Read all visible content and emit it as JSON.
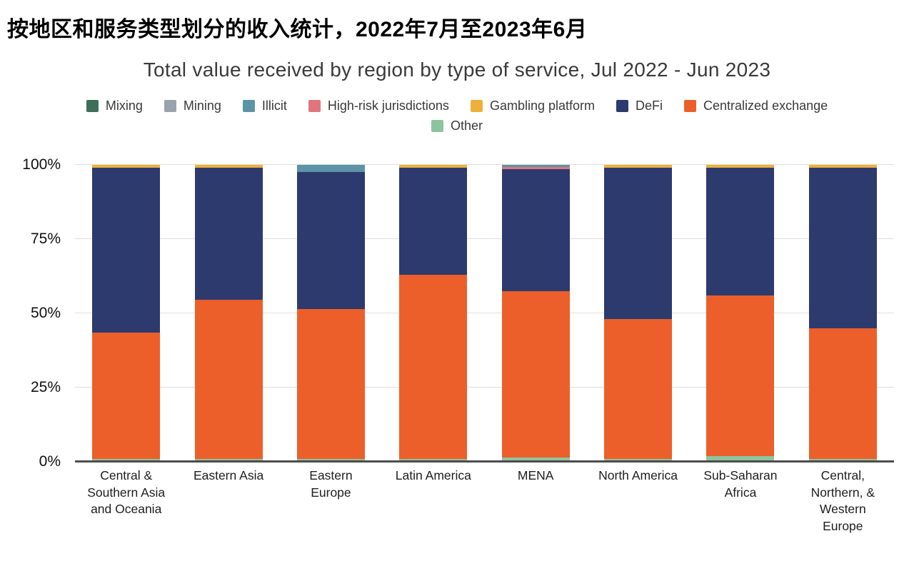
{
  "page": {
    "title_cn": "按地区和服务类型划分的收入统计，2022年7月至2023年6月"
  },
  "chart_data": {
    "type": "bar",
    "stacked": true,
    "title": "Total value received by region by type of service, Jul 2022 - Jun 2023",
    "unit": "percent",
    "ylim": [
      0,
      100
    ],
    "yticks": [
      "0%",
      "25%",
      "50%",
      "75%",
      "100%"
    ],
    "grid": "horizontal",
    "legend_position": "top",
    "legend_rows": [
      [
        "Mixing",
        "Mining",
        "Illicit",
        "High-risk jurisdictions",
        "Gambling platform",
        "DeFi",
        "Centralized exchange"
      ],
      [
        "Other"
      ]
    ],
    "categories": [
      "Central & Southern Asia and Oceania",
      "Eastern Asia",
      "Eastern Europe",
      "Latin America",
      "MENA",
      "North America",
      "Sub-Saharan Africa",
      "Central, Northern, & Western Europe"
    ],
    "series": [
      {
        "name": "Mixing",
        "color": "#3e6e5a",
        "values": [
          0,
          0,
          0,
          0,
          0,
          0,
          0,
          0
        ]
      },
      {
        "name": "Mining",
        "color": "#9aa2ae",
        "values": [
          0,
          0,
          0,
          0,
          0,
          0,
          0,
          0
        ]
      },
      {
        "name": "Illicit",
        "color": "#5d93a6",
        "values": [
          0,
          0,
          2.5,
          0,
          0.75,
          0,
          0,
          0
        ]
      },
      {
        "name": "High-risk jurisdictions",
        "color": "#e0757e",
        "values": [
          0,
          0,
          0,
          0,
          0.75,
          0,
          0,
          0
        ]
      },
      {
        "name": "Gambling platform",
        "color": "#eeaf3a",
        "values": [
          1,
          1,
          0,
          1,
          0,
          1,
          1,
          1
        ]
      },
      {
        "name": "DeFi",
        "color": "#2d3a6e",
        "values": [
          55.5,
          44.5,
          46,
          36,
          41,
          51,
          43,
          54
        ]
      },
      {
        "name": "Centralized exchange",
        "color": "#ec5f2a",
        "values": [
          42.5,
          53.5,
          50.5,
          62,
          56,
          47,
          54,
          44
        ]
      },
      {
        "name": "Other",
        "color": "#8ec49d",
        "values": [
          1,
          1,
          1,
          1,
          1.5,
          1,
          2,
          1
        ]
      }
    ],
    "stack_order_bottom_to_top": [
      "Other",
      "Centralized exchange",
      "DeFi",
      "Gambling platform",
      "High-risk jurisdictions",
      "Illicit",
      "Mining",
      "Mixing"
    ]
  }
}
